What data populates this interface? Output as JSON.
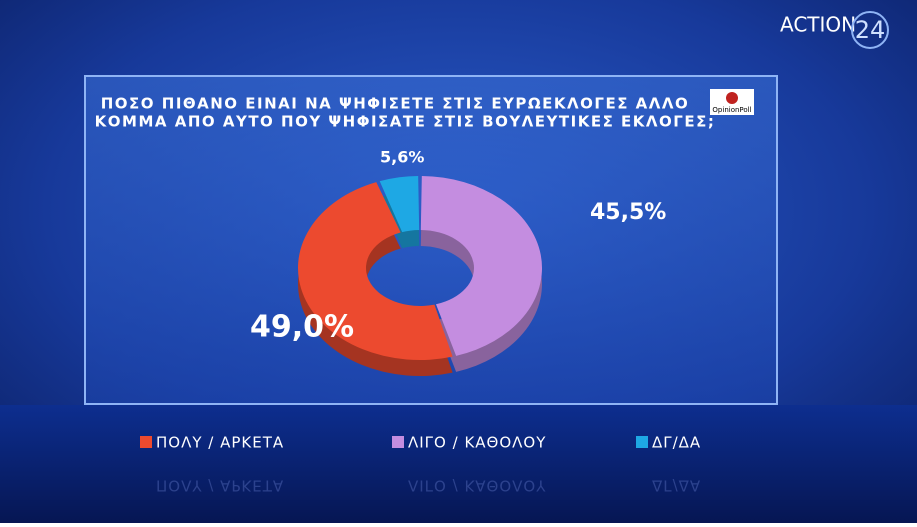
{
  "brand": {
    "channel_name": "ACTION",
    "channel_number": "24",
    "source_logo": "OpinionPoll"
  },
  "chart_data": {
    "type": "donut",
    "title": [
      "ΠΟΣΟ ΠΙΘΑΝΟ ΕΙΝΑΙ ΝΑ ΨΗΦΙΣΕΤΕ ΣΤΙΣ ΕΥΡΩΕΚΛΟΓΕΣ ΑΛΛΟ",
      "ΚΟΜΜΑ ΑΠΟ ΑΥΤΟ ΠΟΥ ΨΗΦΙΣΑΤΕ ΣΤΙΣ ΒΟΥΛΕΥΤΙΚΕΣ ΕΚΛΟΓΕΣ;"
    ],
    "categories": [
      "ΠΟΛΥ / ΑΡΚΕΤΑ",
      "ΛΙΓΟ / ΚΑΘΟΛΟΥ",
      "ΔΓ/ΔΑ"
    ],
    "values": [
      49.0,
      45.5,
      5.6
    ],
    "value_labels": [
      "49,0%",
      "45,5%",
      "5,6%"
    ],
    "colors": [
      "#ec4a2f",
      "#c48de0",
      "#1ea8e4"
    ],
    "legend": "bottom"
  }
}
